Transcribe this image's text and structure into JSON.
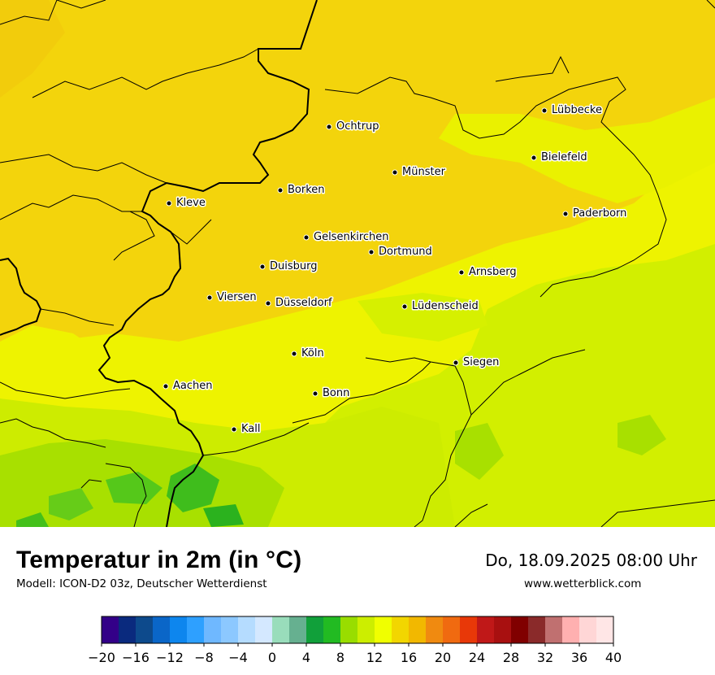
{
  "header": {
    "title": "Temperatur in 2m (in °C)",
    "model": "Modell: ICON-D2 03z, Deutscher Wetterdienst",
    "datetime": "Do, 18.09.2025 08:00 Uhr",
    "website": "www.wetterblick.com"
  },
  "cities": [
    {
      "name": "Lübbecke"
    },
    {
      "name": "Ochtrup"
    },
    {
      "name": "Bielefeld"
    },
    {
      "name": "Münster"
    },
    {
      "name": "Borken"
    },
    {
      "name": "Kleve"
    },
    {
      "name": "Paderborn"
    },
    {
      "name": "Gelsenkirchen"
    },
    {
      "name": "Dortmund"
    },
    {
      "name": "Duisburg"
    },
    {
      "name": "Arnsberg"
    },
    {
      "name": "Viersen"
    },
    {
      "name": "Düsseldorf"
    },
    {
      "name": "Lüdenscheid"
    },
    {
      "name": "Köln"
    },
    {
      "name": "Siegen"
    },
    {
      "name": "Aachen"
    },
    {
      "name": "Bonn"
    },
    {
      "name": "Kall"
    }
  ],
  "legend": {
    "min": -20,
    "max": 40,
    "step": 2,
    "tick_labels": [
      "−20",
      "−16",
      "−12",
      "−8",
      "−4",
      "0",
      "4",
      "8",
      "12",
      "16",
      "20",
      "24",
      "28",
      "32",
      "36",
      "40"
    ],
    "colors": [
      "#330088",
      "#0a2a7e",
      "#0d4a8c",
      "#0a66c8",
      "#0d86ee",
      "#2ea0ff",
      "#6fb8ff",
      "#8cc8ff",
      "#b5dcff",
      "#d4e8ff",
      "#99ddbb",
      "#66b090",
      "#11a03a",
      "#22bb22",
      "#99dd00",
      "#ccee00",
      "#f0ff00",
      "#f2d600",
      "#f2b800",
      "#f08a10",
      "#f06a10",
      "#e83808",
      "#c01818",
      "#a81010",
      "#800000",
      "#8a2a2a",
      "#c07070",
      "#ffb0b0",
      "#ffd6d6",
      "#ffe6e6"
    ]
  }
}
